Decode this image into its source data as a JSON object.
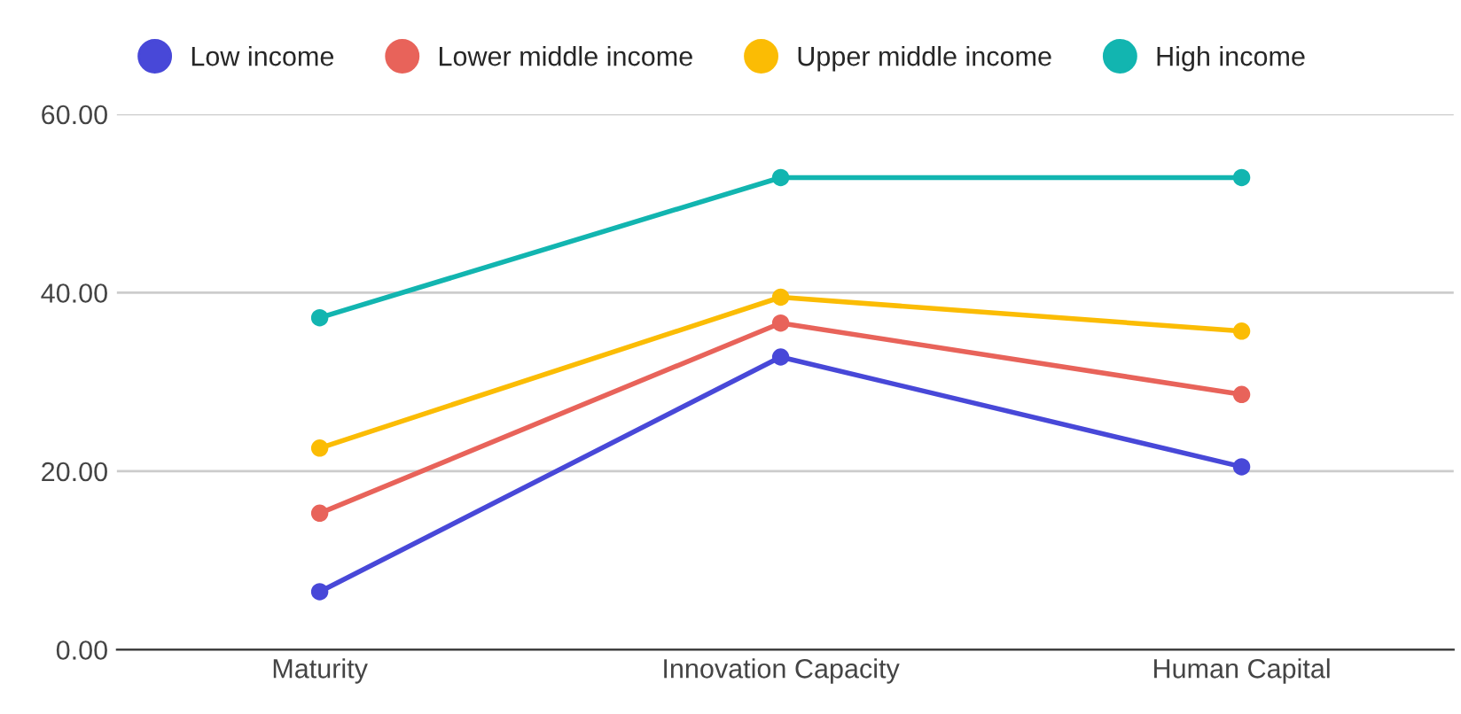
{
  "chart_data": {
    "type": "line",
    "categories": [
      "Maturity",
      "Innovation Capacity",
      "Human Capital"
    ],
    "series": [
      {
        "name": "Low income",
        "color": "#4848d8",
        "values": [
          6.5,
          32.8,
          20.5
        ]
      },
      {
        "name": "Lower middle income",
        "color": "#e8635a",
        "values": [
          15.3,
          36.6,
          28.6
        ]
      },
      {
        "name": "Upper middle income",
        "color": "#fbbc04",
        "values": [
          22.6,
          39.5,
          35.7
        ]
      },
      {
        "name": "High income",
        "color": "#12b5b0",
        "values": [
          37.2,
          52.9,
          52.9
        ]
      }
    ],
    "ylim": [
      0,
      60
    ],
    "yticks": [
      {
        "value": 0,
        "label": "0.00"
      },
      {
        "value": 20,
        "label": "20.00"
      },
      {
        "value": 40,
        "label": "40.00"
      },
      {
        "value": 60,
        "label": "60.00"
      }
    ],
    "grid": "y",
    "legend": "top",
    "marker": "circle",
    "line_style": "solid"
  }
}
